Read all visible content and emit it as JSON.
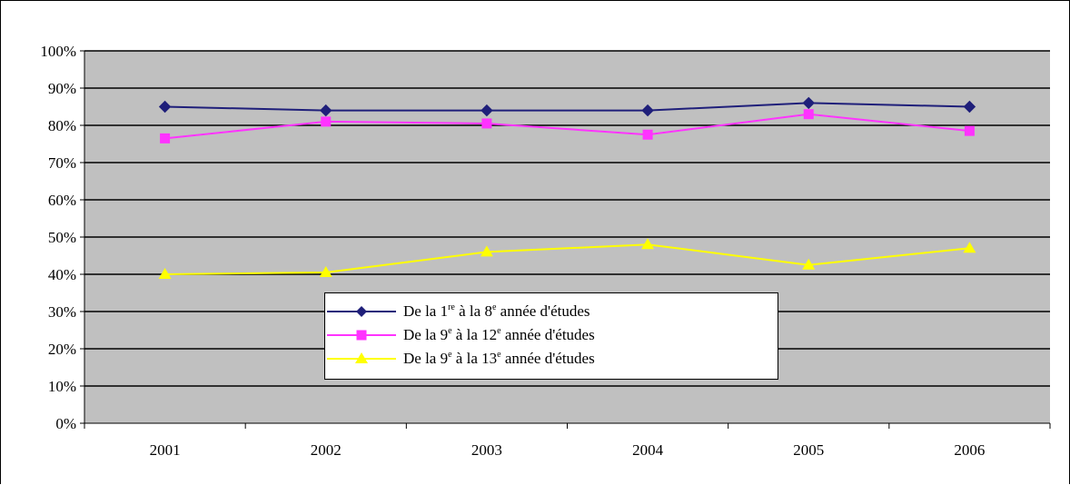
{
  "chart_data": {
    "type": "line",
    "categories": [
      "2001",
      "2002",
      "2003",
      "2004",
      "2005",
      "2006"
    ],
    "y_ticks": [
      "0%",
      "10%",
      "20%",
      "30%",
      "40%",
      "50%",
      "60%",
      "70%",
      "80%",
      "90%",
      "100%"
    ],
    "ylim": [
      0,
      100
    ],
    "grid": true,
    "legend_placement": "bottom-center",
    "series": [
      {
        "name": "De la 1re à la 8e année d'études",
        "label_parts": [
          "De la 1",
          "re",
          " à la 8",
          "e",
          " année d'études"
        ],
        "color": "#1f1f7a",
        "marker": "diamond",
        "values": [
          85,
          84,
          84,
          84,
          86,
          85
        ]
      },
      {
        "name": "De la 9e à la 12e année d'études",
        "label_parts": [
          "De la 9",
          "e",
          " à la 12",
          "e",
          " année d'études"
        ],
        "color": "#ff33ff",
        "marker": "square",
        "values": [
          76.5,
          81,
          80.5,
          77.5,
          83,
          78.5
        ]
      },
      {
        "name": "De la 9e à la 13e année d'études",
        "label_parts": [
          "De la 9",
          "e",
          " à la 13",
          "e",
          " année d'études"
        ],
        "color": "#ffff00",
        "marker": "triangle",
        "values": [
          40,
          40.5,
          46,
          48,
          42.5,
          47
        ]
      }
    ],
    "plot_background": "#c0c0c0",
    "gridline_color": "#000000"
  }
}
